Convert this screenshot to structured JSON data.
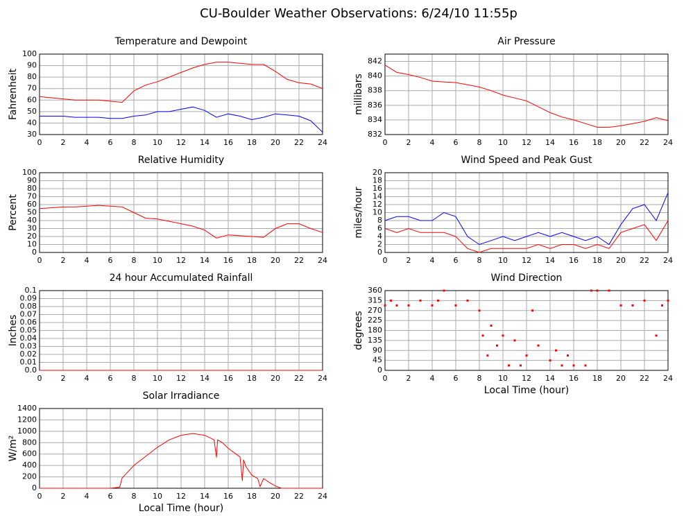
{
  "title": "CU-Boulder Weather Observations: 6/24/10 11:55p",
  "chart_data": [
    {
      "type": "line",
      "title": "Temperature and Dewpoint",
      "y_label": "Fahrenheit",
      "x": [
        0,
        1,
        2,
        3,
        4,
        5,
        6,
        7,
        8,
        9,
        10,
        11,
        12,
        13,
        14,
        15,
        16,
        17,
        18,
        19,
        20,
        21,
        22,
        23,
        24
      ],
      "series": [
        {
          "color": "#ff0000",
          "values": [
            63,
            62,
            61,
            60,
            60,
            60,
            59,
            58,
            68,
            73,
            76,
            80,
            84,
            88,
            91,
            93,
            93,
            92,
            91,
            91,
            85,
            78,
            75,
            74,
            70
          ]
        },
        {
          "color": "#0000ff",
          "values": [
            46,
            46,
            46,
            45,
            45,
            45,
            44,
            44,
            46,
            47,
            50,
            50,
            52,
            54,
            51,
            45,
            48,
            46,
            43,
            45,
            48,
            47,
            46,
            42,
            32
          ]
        }
      ],
      "xlim": [
        0,
        24
      ],
      "xticks": [
        0,
        2,
        4,
        6,
        8,
        10,
        12,
        14,
        16,
        18,
        20,
        22,
        24
      ],
      "ylim": [
        30,
        100
      ],
      "yticks": [
        30,
        40,
        50,
        60,
        70,
        80,
        90,
        100
      ],
      "grid": true
    },
    {
      "type": "line",
      "title": "Air Pressure",
      "y_label": "millibars",
      "x": [
        0,
        1,
        2,
        3,
        4,
        5,
        6,
        7,
        8,
        9,
        10,
        11,
        12,
        13,
        14,
        15,
        16,
        17,
        18,
        19,
        20,
        21,
        22,
        23,
        24
      ],
      "values": [
        841.5,
        840.5,
        840.2,
        839.8,
        839.3,
        839.2,
        839.1,
        838.8,
        838.5,
        838,
        837.4,
        837,
        836.6,
        835.8,
        835,
        834.4,
        834,
        833.5,
        833,
        833,
        833.2,
        833.5,
        833.8,
        834.3,
        833.9
      ],
      "color": "#ff0000",
      "xlim": [
        0,
        24
      ],
      "xticks": [
        0,
        2,
        4,
        6,
        8,
        10,
        12,
        14,
        16,
        18,
        20,
        22,
        24
      ],
      "ylim": [
        832,
        843
      ],
      "yticks": [
        832,
        834,
        836,
        838,
        840,
        842
      ],
      "grid": true
    },
    {
      "type": "line",
      "title": "Relative Humidity",
      "y_label": "Percent",
      "x": [
        0,
        1,
        2,
        3,
        4,
        5,
        6,
        7,
        8,
        9,
        10,
        11,
        12,
        13,
        14,
        15,
        16,
        17,
        18,
        19,
        20,
        21,
        22,
        23,
        24
      ],
      "values": [
        55,
        56,
        57,
        57,
        58,
        59,
        58,
        57,
        50,
        43,
        42,
        39,
        36,
        33,
        28,
        18,
        22,
        21,
        20,
        19,
        30,
        36,
        36,
        30,
        25
      ],
      "color": "#ff0000",
      "xlim": [
        0,
        24
      ],
      "xticks": [
        0,
        2,
        4,
        6,
        8,
        10,
        12,
        14,
        16,
        18,
        20,
        22,
        24
      ],
      "ylim": [
        0,
        100
      ],
      "yticks": [
        0,
        10,
        20,
        30,
        40,
        50,
        60,
        70,
        80,
        90,
        100
      ],
      "grid": true
    },
    {
      "type": "line",
      "title": "Wind Speed and Peak Gust",
      "y_label": "miles/hour",
      "x": [
        0,
        1,
        2,
        3,
        4,
        5,
        6,
        7,
        8,
        9,
        10,
        11,
        12,
        13,
        14,
        15,
        16,
        17,
        18,
        19,
        20,
        21,
        22,
        23,
        24
      ],
      "series": [
        {
          "color": "#0000ff",
          "values": [
            8,
            9,
            9,
            8,
            8,
            10,
            9,
            4,
            2,
            3,
            4,
            3,
            4,
            5,
            4,
            5,
            4,
            3,
            4,
            2,
            7,
            11,
            12,
            8,
            15
          ]
        },
        {
          "color": "#ff0000",
          "values": [
            6,
            5,
            6,
            5,
            5,
            5,
            4,
            1,
            0,
            1,
            1,
            1,
            1,
            2,
            1,
            2,
            2,
            1,
            2,
            1,
            5,
            6,
            7,
            3,
            8
          ]
        }
      ],
      "xlim": [
        0,
        24
      ],
      "xticks": [
        0,
        2,
        4,
        6,
        8,
        10,
        12,
        14,
        16,
        18,
        20,
        22,
        24
      ],
      "ylim": [
        0,
        20
      ],
      "yticks": [
        0,
        2,
        4,
        6,
        8,
        10,
        12,
        14,
        16,
        18,
        20
      ],
      "grid": true
    },
    {
      "type": "line",
      "title": "24 hour Accumulated Rainfall",
      "y_label": "Inches",
      "x": [
        0,
        24
      ],
      "values": [
        0,
        0
      ],
      "color": "#ff0000",
      "xlim": [
        0,
        24
      ],
      "xticks": [
        0,
        2,
        4,
        6,
        8,
        10,
        12,
        14,
        16,
        18,
        20,
        22,
        24
      ],
      "ylim": [
        0,
        0.1
      ],
      "yticks": [
        {
          "value": 0,
          "label": "0.0"
        },
        0.01,
        0.02,
        0.03,
        0.04,
        0.05,
        0.06,
        0.07,
        0.08,
        0.09,
        0.1
      ],
      "grid": true
    },
    {
      "type": "scatter",
      "title": "Wind Direction",
      "y_label": "degrees",
      "x_label": "Local Time (hour)",
      "x": [
        0,
        0.5,
        1,
        2,
        3,
        4,
        4.5,
        5,
        6,
        7,
        8,
        8.3,
        8.7,
        9,
        9.5,
        10,
        10.5,
        11,
        11.5,
        12,
        12.5,
        13,
        14,
        14.5,
        15,
        15.5,
        16,
        17,
        17.5,
        18,
        19,
        20,
        21,
        22,
        23,
        23.5,
        24
      ],
      "values": [
        293,
        315,
        293,
        293,
        315,
        293,
        315,
        360,
        293,
        315,
        270,
        157,
        67,
        202,
        112,
        157,
        22,
        135,
        22,
        67,
        270,
        112,
        45,
        90,
        22,
        67,
        22,
        22,
        360,
        360,
        360,
        293,
        293,
        315,
        157,
        293,
        315
      ],
      "color": "#ff0000",
      "xlim": [
        0,
        24
      ],
      "xticks": [
        0,
        2,
        4,
        6,
        8,
        10,
        12,
        14,
        16,
        18,
        20,
        22,
        24
      ],
      "ylim": [
        0,
        360
      ],
      "yticks": [
        0,
        45,
        90,
        135,
        180,
        225,
        270,
        315,
        360
      ],
      "grid": true
    },
    {
      "type": "line",
      "title": "Solar Irradiance",
      "y_label": "W/m²",
      "x_label": "Local Time (hour)",
      "x": [
        0,
        6,
        6.8,
        7,
        8,
        9,
        10,
        11,
        12,
        13,
        14,
        14.8,
        15,
        15.1,
        15.5,
        16,
        17,
        17.2,
        17.3,
        17.5,
        18,
        18.5,
        18.7,
        19,
        19.5,
        20,
        20.5,
        21,
        24
      ],
      "values": [
        0,
        0,
        20,
        180,
        400,
        560,
        720,
        850,
        930,
        960,
        930,
        850,
        540,
        850,
        800,
        700,
        550,
        130,
        500,
        380,
        230,
        170,
        30,
        170,
        100,
        40,
        0,
        0,
        0
      ],
      "color": "#ff0000",
      "xlim": [
        0,
        24
      ],
      "xticks": [
        0,
        2,
        4,
        6,
        8,
        10,
        12,
        14,
        16,
        18,
        20,
        22,
        24
      ],
      "ylim": [
        0,
        1400
      ],
      "yticks": [
        0,
        200,
        400,
        600,
        800,
        1000,
        1200,
        1400
      ],
      "grid": true
    }
  ]
}
